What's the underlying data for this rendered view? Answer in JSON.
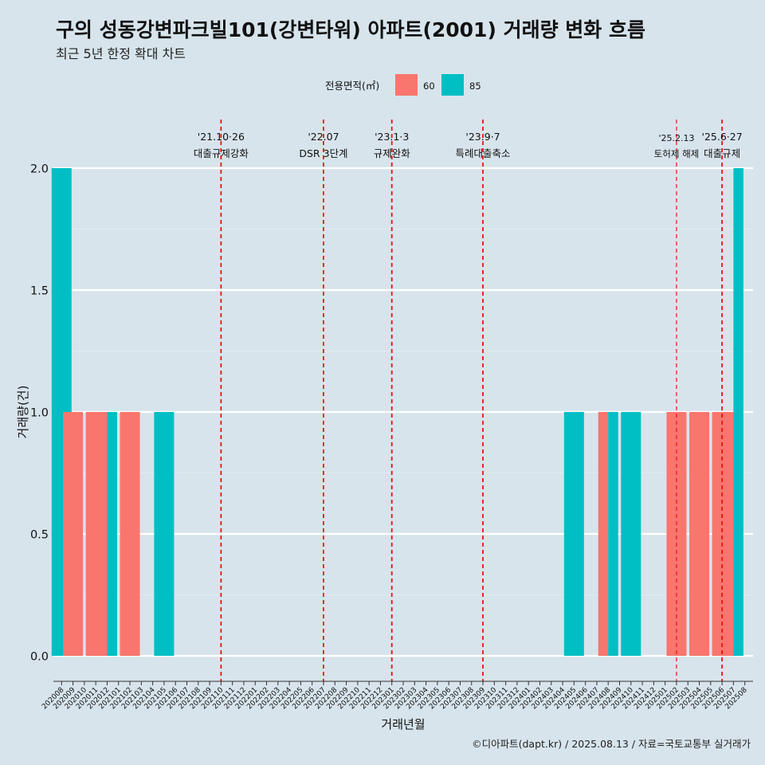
{
  "chart_data": {
    "type": "bar",
    "title": "구의 성동강변파크빌101(강변타워) 아파트(2001) 거래량 변화 흐름",
    "subtitle": "최근 5년 한정 확대 차트",
    "xlabel": "거래년월",
    "ylabel": "거래량(건)",
    "ylim": [
      0,
      2
    ],
    "yticks": [
      "0.0",
      "0.5",
      "1.0",
      "1.5",
      "2.0"
    ],
    "grid": true,
    "legend": {
      "title": "전용면적(㎡)",
      "placement": "top",
      "entries": [
        {
          "name": "60",
          "color": "#f8766d"
        },
        {
          "name": "85",
          "color": "#00bfc4"
        }
      ]
    },
    "categories": [
      "202008",
      "202009",
      "202010",
      "202011",
      "202012",
      "202101",
      "202102",
      "202103",
      "202104",
      "202105",
      "202106",
      "202107",
      "202108",
      "202109",
      "202110",
      "202111",
      "202112",
      "202201",
      "202202",
      "202203",
      "202204",
      "202205",
      "202206",
      "202207",
      "202208",
      "202209",
      "202210",
      "202211",
      "202212",
      "202301",
      "202302",
      "202303",
      "202304",
      "202305",
      "202306",
      "202307",
      "202308",
      "202309",
      "202310",
      "202311",
      "202312",
      "202401",
      "202402",
      "202403",
      "202404",
      "202405",
      "202406",
      "202407",
      "202408",
      "202409",
      "202410",
      "202411",
      "202412",
      "202501",
      "202502",
      "202503",
      "202504",
      "202505",
      "202506",
      "202507",
      "202508"
    ],
    "series": [
      {
        "name": "60",
        "color": "#f8766d",
        "values": [
          0,
          1,
          0,
          1,
          1,
          0,
          1,
          0,
          0,
          0,
          0,
          0,
          0,
          0,
          0,
          0,
          0,
          0,
          0,
          0,
          0,
          0,
          0,
          0,
          0,
          0,
          0,
          0,
          0,
          0,
          0,
          0,
          0,
          0,
          0,
          0,
          0,
          0,
          0,
          0,
          0,
          0,
          0,
          0,
          0,
          0,
          0,
          0,
          1,
          0,
          0,
          0,
          0,
          0,
          1,
          0,
          1,
          0,
          1,
          1,
          0
        ]
      },
      {
        "name": "85",
        "color": "#00bfc4",
        "values": [
          2,
          0,
          0,
          0,
          1,
          0,
          0,
          0,
          0,
          1,
          0,
          0,
          0,
          0,
          0,
          0,
          0,
          0,
          0,
          0,
          0,
          0,
          0,
          0,
          0,
          0,
          0,
          0,
          0,
          0,
          0,
          0,
          0,
          0,
          0,
          0,
          0,
          0,
          0,
          0,
          0,
          0,
          0,
          0,
          0,
          1,
          0,
          0,
          1,
          0,
          1,
          0,
          0,
          0,
          0,
          0,
          0,
          0,
          0,
          2,
          0
        ]
      }
    ],
    "annotations": [
      {
        "month": "202110",
        "date": "'21.10·26",
        "label": "대출규제강화"
      },
      {
        "month": "202207",
        "date": "'22.07",
        "label": "DSR 3단계"
      },
      {
        "month": "202301",
        "date": "'23.1·3",
        "label": "규제완화"
      },
      {
        "month": "202309",
        "date": "'23.9·7",
        "label": "특례대출축소"
      },
      {
        "month": "202502",
        "date": "'25.2.13",
        "label": "토허제 해제"
      },
      {
        "month": "202506",
        "date": "'25.6·27",
        "label": "대출규제"
      }
    ]
  },
  "footer": {
    "caption": "©디아파트(dapt.kr) / 2025.08.13 / 자료=국토교통부 실거래가"
  }
}
